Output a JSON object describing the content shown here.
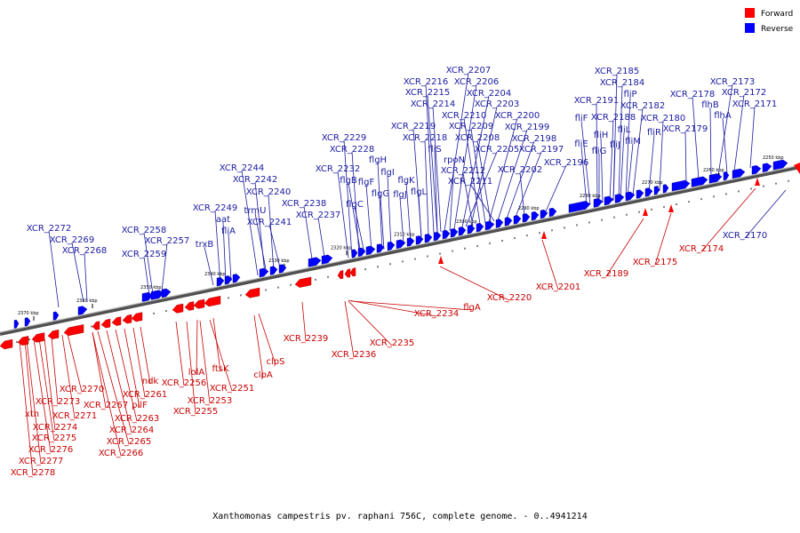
{
  "caption": "Xanthomonas campestris pv. raphani 756C, complete genome. - 0..4941214",
  "colors": {
    "forward": "#ff0000",
    "reverse": "#0000ff",
    "forward_label": "#c80000",
    "reverse_label": "#1a1aa0",
    "axis": "#808080"
  },
  "legend": [
    {
      "label": "Forward",
      "color": "#ff0000"
    },
    {
      "label": "Reverse",
      "color": "#0000ff"
    }
  ],
  "ticks": [
    "2370 kbp",
    "2360 kbp",
    "2350 kbp",
    "2340 kbp",
    "2330 kbp",
    "2320 kbp",
    "2310 kbp",
    "2300 kbp",
    "2290 kbp",
    "2280 kbp",
    "2270 kbp",
    "2260 kbp",
    "2250 kbp"
  ],
  "reverse_labels": [
    "XCR_2207",
    "XCR_2216",
    "XCR_2206",
    "XCR_2215",
    "XCR_2204",
    "XCR_2214",
    "XCR_2203",
    "XCR_2210",
    "XCR_2200",
    "XCR_2219",
    "XCR_2209",
    "XCR_2199",
    "XCR_2218",
    "XCR_2208",
    "XCR_2198",
    "XCR_2229",
    "fliS",
    "XCR_2205",
    "XCR_2197",
    "XCR_2228",
    "rpoN",
    "flgH",
    "XCR_2196",
    "XCR_2232",
    "flgI",
    "XCR_2212",
    "XCR_2202",
    "flgB",
    "flgF",
    "flgK",
    "XCR_2211",
    "flgG",
    "flgJ",
    "flgL",
    "flgC",
    "XCR_2185",
    "XCR_2184",
    "XCR_2173",
    "fliP",
    "XCR_2172",
    "XCR_2191",
    "XCR_2182",
    "XCR_2178",
    "XCR_2171",
    "flhB",
    "fliF",
    "XCR_2188",
    "XCR_2180",
    "flhA",
    "fliL",
    "fliH",
    "XCR_2179",
    "fliR",
    "fliE",
    "fliJ",
    "fliM",
    "fliG",
    "XCR_2244",
    "XCR_2242",
    "XCR_2240",
    "XCR_2249",
    "trmU",
    "XCR_2238",
    "aat",
    "XCR_2241",
    "XCR_2237",
    "XCR_2272",
    "XCR_2258",
    "fliA",
    "XCR_2269",
    "XCR_2257",
    "trxB",
    "XCR_2268",
    "XCR_2259",
    "XCR_2170"
  ],
  "forward_labels": [
    "XCR_2201",
    "XCR_2189",
    "XCR_2175",
    "XCR_2174",
    "XCR_2220",
    "flgA",
    "XCR_2234",
    "XCR_2235",
    "XCR_2239",
    "XCR_2236",
    "clpS",
    "clpA",
    "ftsK",
    "lolA",
    "XCR_2256",
    "XCR_2251",
    "XCR_2253",
    "XCR_2255",
    "ndk",
    "XCR_2261",
    "pilF",
    "XCR_2263",
    "XCR_2264",
    "XCR_2265",
    "XCR_2266",
    "XCR_2267",
    "XCR_2270",
    "XCR_2271",
    "XCR_2273",
    "XCR_2274",
    "XCR_2275",
    "XCR_2276",
    "XCR_2277",
    "XCR_2278",
    "xth"
  ]
}
